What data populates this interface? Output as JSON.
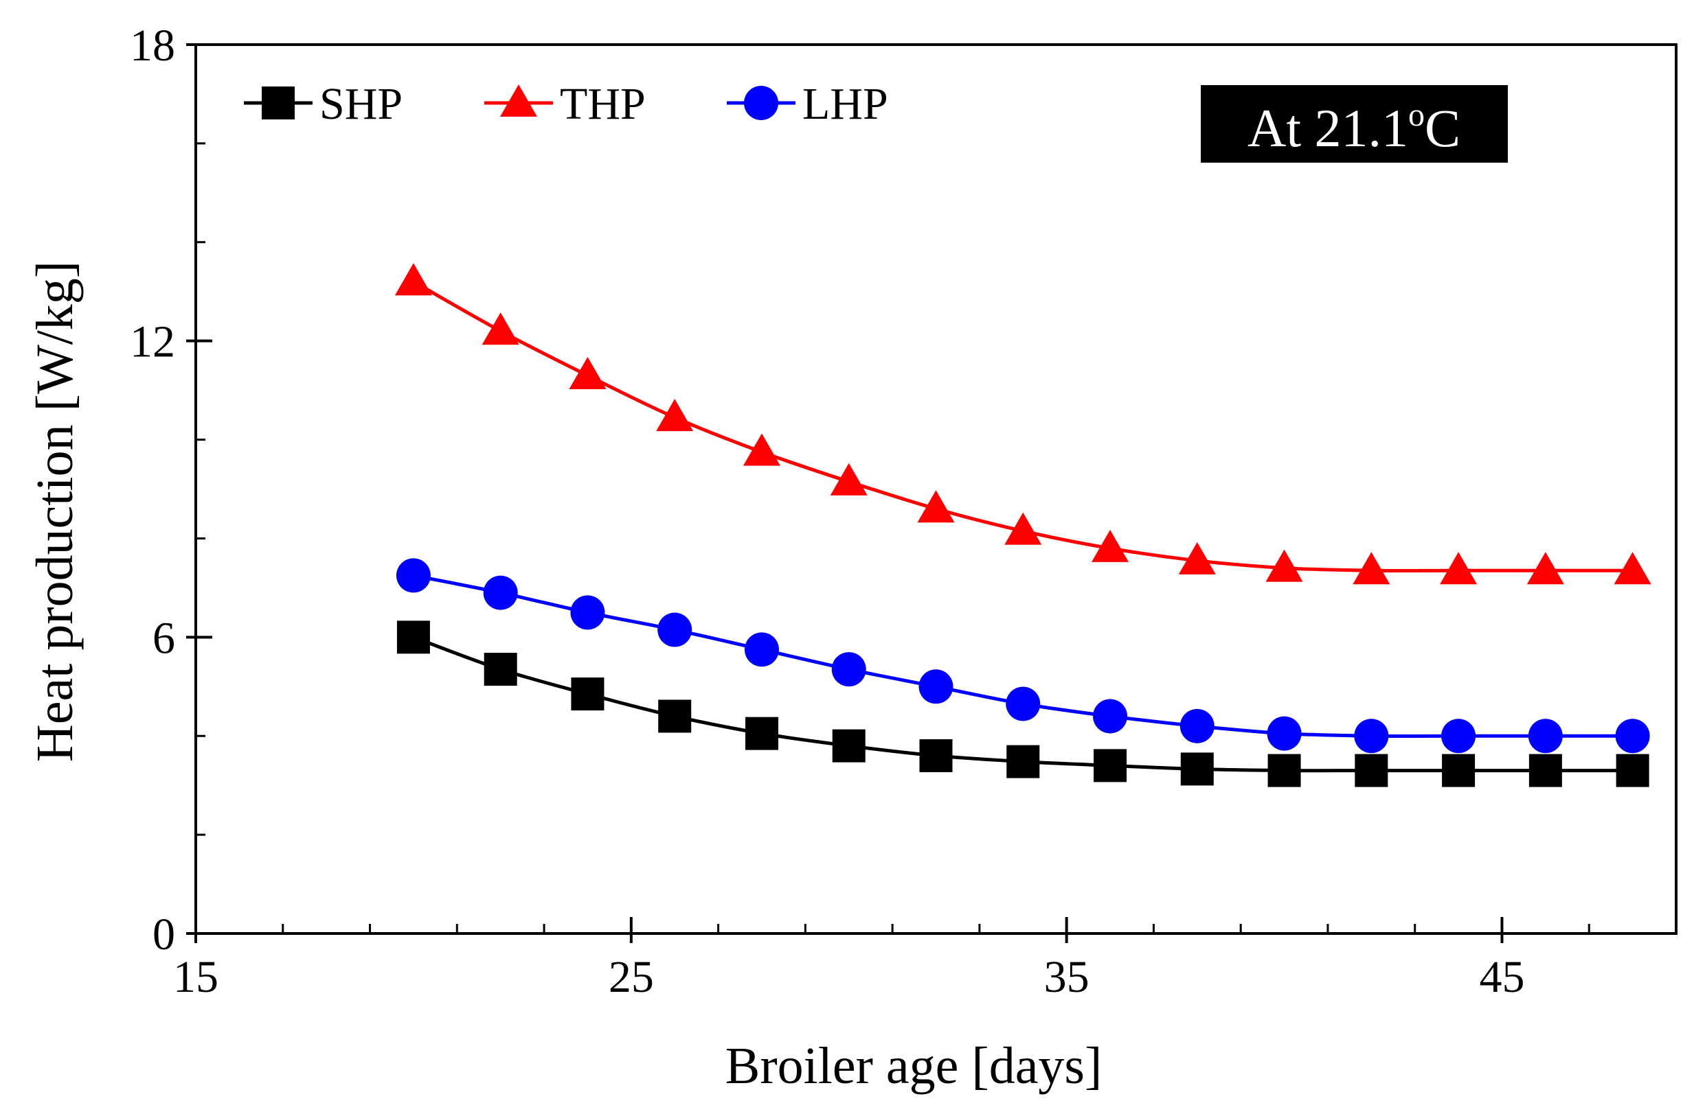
{
  "chart_data": {
    "type": "line",
    "title": "",
    "xlabel": "Broiler age [days]",
    "ylabel": "Heat production [W/kg]",
    "xlim": [
      15,
      49
    ],
    "ylim": [
      0,
      18
    ],
    "xticks": [
      15,
      25,
      35,
      45
    ],
    "yticks": [
      0,
      6,
      12,
      18
    ],
    "x_minor_step": 2,
    "y_minor_step": 2,
    "annotation": {
      "text": "At 21.1",
      "superscript": "o",
      "unit": "C"
    },
    "legend_position": "top-left",
    "x": [
      20,
      22,
      24,
      26,
      28,
      30,
      32,
      34,
      36,
      38,
      40,
      42,
      44,
      46,
      48
    ],
    "series": [
      {
        "name": "SHP",
        "color": "#000000",
        "marker": "square",
        "values": [
          6.0,
          5.35,
          4.85,
          4.4,
          4.05,
          3.8,
          3.6,
          3.48,
          3.4,
          3.33,
          3.3,
          3.3,
          3.3,
          3.3,
          3.3
        ]
      },
      {
        "name": "THP",
        "color": "#ff0000",
        "marker": "triangle",
        "values": [
          13.2,
          12.2,
          11.3,
          10.45,
          9.75,
          9.15,
          8.6,
          8.15,
          7.8,
          7.55,
          7.4,
          7.35,
          7.35,
          7.35,
          7.35
        ]
      },
      {
        "name": "LHP",
        "color": "#0000ff",
        "marker": "circle",
        "values": [
          7.25,
          6.9,
          6.5,
          6.15,
          5.75,
          5.35,
          5.0,
          4.65,
          4.4,
          4.2,
          4.05,
          4.0,
          4.0,
          4.0,
          4.0
        ]
      }
    ]
  }
}
